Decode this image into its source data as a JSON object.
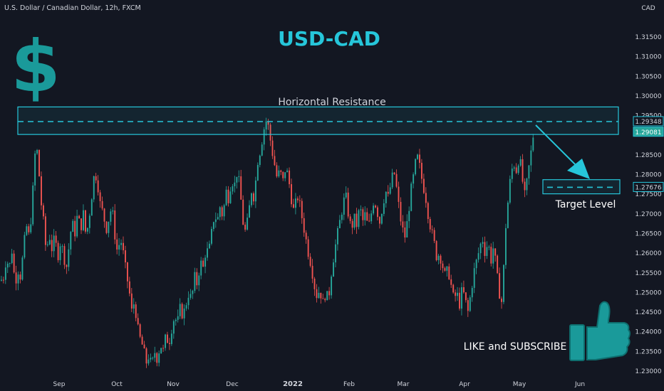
{
  "header": {
    "symbol_line": "U.S. Dollar / Canadian Dollar, 12h, FXCM",
    "currency": "CAD"
  },
  "chart_data": {
    "type": "candlestick",
    "title": "USD-CAD",
    "y_axis": {
      "unit": "CAD",
      "ticks": [
        1.315,
        1.31,
        1.305,
        1.3,
        1.295,
        1.285,
        1.28,
        1.275,
        1.27,
        1.265,
        1.26,
        1.255,
        1.25,
        1.245,
        1.24,
        1.235,
        1.23
      ],
      "tick_labels": [
        "1.31500",
        "1.31000",
        "1.30500",
        "1.30000",
        "1.29500",
        "1.28500",
        "1.28000",
        "1.27500",
        "1.27000",
        "1.26500",
        "1.26000",
        "1.25500",
        "1.25000",
        "1.24500",
        "1.24000",
        "1.23500",
        "1.23000"
      ],
      "range": [
        1.23,
        1.32
      ]
    },
    "x_axis": {
      "labels": [
        "Sep",
        "Oct",
        "Nov",
        "Dec",
        "2022",
        "Feb",
        "Mar",
        "Apr",
        "May",
        "Jun"
      ],
      "bold_labels": [
        "2022"
      ]
    },
    "price_markers": [
      {
        "label": "1.29348",
        "value": 1.29348,
        "style": "outlined"
      },
      {
        "label": "1.29081",
        "value": 1.29081,
        "style": "filled"
      },
      {
        "label": "1.27676",
        "value": 1.27676,
        "style": "outlined"
      }
    ],
    "close_path": [
      [
        0,
        1.253
      ],
      [
        4,
        1.254
      ],
      [
        8,
        1.259
      ],
      [
        12,
        1.256
      ],
      [
        16,
        1.261
      ],
      [
        20,
        1.252
      ],
      [
        24,
        1.256
      ],
      [
        28,
        1.254
      ],
      [
        32,
        1.261
      ],
      [
        36,
        1.267
      ],
      [
        40,
        1.264
      ],
      [
        44,
        1.272
      ],
      [
        48,
        1.285
      ],
      [
        52,
        1.286
      ],
      [
        56,
        1.274
      ],
      [
        60,
        1.268
      ],
      [
        64,
        1.26
      ],
      [
        68,
        1.265
      ],
      [
        72,
        1.261
      ],
      [
        76,
        1.264
      ],
      [
        80,
        1.259
      ],
      [
        84,
        1.263
      ],
      [
        88,
        1.26
      ],
      [
        92,
        1.256
      ],
      [
        96,
        1.262
      ],
      [
        100,
        1.268
      ],
      [
        104,
        1.265
      ],
      [
        108,
        1.27
      ],
      [
        112,
        1.266
      ],
      [
        116,
        1.27
      ],
      [
        120,
        1.264
      ],
      [
        124,
        1.269
      ],
      [
        128,
        1.275
      ],
      [
        132,
        1.281
      ],
      [
        136,
        1.278
      ],
      [
        140,
        1.272
      ],
      [
        144,
        1.27
      ],
      [
        148,
        1.266
      ],
      [
        152,
        1.269
      ],
      [
        156,
        1.272
      ],
      [
        160,
        1.265
      ],
      [
        164,
        1.26
      ],
      [
        168,
        1.264
      ],
      [
        172,
        1.26
      ],
      [
        176,
        1.255
      ],
      [
        180,
        1.251
      ],
      [
        184,
        1.245
      ],
      [
        188,
        1.248
      ],
      [
        192,
        1.241
      ],
      [
        196,
        1.238
      ],
      [
        200,
        1.236
      ],
      [
        204,
        1.232
      ],
      [
        208,
        1.234
      ],
      [
        212,
        1.231
      ],
      [
        216,
        1.235
      ],
      [
        220,
        1.233
      ],
      [
        224,
        1.237
      ],
      [
        228,
        1.235
      ],
      [
        232,
        1.239
      ],
      [
        236,
        1.237
      ],
      [
        240,
        1.241
      ],
      [
        244,
        1.244
      ],
      [
        248,
        1.242
      ],
      [
        252,
        1.246
      ],
      [
        256,
        1.244
      ],
      [
        260,
        1.247
      ],
      [
        264,
        1.25
      ],
      [
        268,
        1.248
      ],
      [
        272,
        1.254
      ],
      [
        276,
        1.252
      ],
      [
        280,
        1.258
      ],
      [
        284,
        1.256
      ],
      [
        288,
        1.261
      ],
      [
        292,
        1.26
      ],
      [
        296,
        1.265
      ],
      [
        300,
        1.27
      ],
      [
        304,
        1.268
      ],
      [
        308,
        1.272
      ],
      [
        312,
        1.269
      ],
      [
        316,
        1.276
      ],
      [
        320,
        1.274
      ],
      [
        324,
        1.279
      ],
      [
        328,
        1.277
      ],
      [
        332,
        1.281
      ],
      [
        336,
        1.276
      ],
      [
        340,
        1.268
      ],
      [
        344,
        1.265
      ],
      [
        348,
        1.27
      ],
      [
        352,
        1.276
      ],
      [
        356,
        1.274
      ],
      [
        360,
        1.283
      ],
      [
        364,
        1.286
      ],
      [
        368,
        1.29
      ],
      [
        372,
        1.294
      ],
      [
        376,
        1.292
      ],
      [
        380,
        1.287
      ],
      [
        384,
        1.283
      ],
      [
        388,
        1.279
      ],
      [
        392,
        1.281
      ],
      [
        396,
        1.278
      ],
      [
        400,
        1.282
      ],
      [
        404,
        1.279
      ],
      [
        408,
        1.274
      ],
      [
        412,
        1.27
      ],
      [
        416,
        1.275
      ],
      [
        420,
        1.272
      ],
      [
        424,
        1.268
      ],
      [
        428,
        1.264
      ],
      [
        432,
        1.26
      ],
      [
        436,
        1.257
      ],
      [
        440,
        1.252
      ],
      [
        444,
        1.249
      ],
      [
        448,
        1.251
      ],
      [
        452,
        1.247
      ],
      [
        456,
        1.25
      ],
      [
        460,
        1.248
      ],
      [
        464,
        1.255
      ],
      [
        468,
        1.26
      ],
      [
        472,
        1.264
      ],
      [
        476,
        1.268
      ],
      [
        480,
        1.272
      ],
      [
        484,
        1.275
      ],
      [
        488,
        1.27
      ],
      [
        492,
        1.266
      ],
      [
        496,
        1.269
      ],
      [
        500,
        1.267
      ],
      [
        504,
        1.272
      ],
      [
        508,
        1.268
      ],
      [
        512,
        1.27
      ],
      [
        516,
        1.266
      ],
      [
        520,
        1.27
      ],
      [
        524,
        1.274
      ],
      [
        528,
        1.271
      ],
      [
        532,
        1.268
      ],
      [
        536,
        1.272
      ],
      [
        540,
        1.276
      ],
      [
        544,
        1.274
      ],
      [
        548,
        1.278
      ],
      [
        552,
        1.281
      ],
      [
        556,
        1.276
      ],
      [
        560,
        1.27
      ],
      [
        564,
        1.266
      ],
      [
        568,
        1.264
      ],
      [
        572,
        1.27
      ],
      [
        576,
        1.276
      ],
      [
        580,
        1.28
      ],
      [
        584,
        1.285
      ],
      [
        588,
        1.282
      ],
      [
        592,
        1.278
      ],
      [
        596,
        1.275
      ],
      [
        600,
        1.27
      ],
      [
        604,
        1.266
      ],
      [
        608,
        1.263
      ],
      [
        612,
        1.259
      ],
      [
        616,
        1.26
      ],
      [
        620,
        1.257
      ],
      [
        624,
        1.254
      ],
      [
        628,
        1.256
      ],
      [
        632,
        1.252
      ],
      [
        636,
        1.248
      ],
      [
        640,
        1.25
      ],
      [
        644,
        1.247
      ],
      [
        648,
        1.251
      ],
      [
        652,
        1.248
      ],
      [
        656,
        1.245
      ],
      [
        660,
        1.25
      ],
      [
        664,
        1.255
      ],
      [
        668,
        1.258
      ],
      [
        672,
        1.261
      ],
      [
        676,
        1.264
      ],
      [
        680,
        1.26
      ],
      [
        684,
        1.263
      ],
      [
        688,
        1.258
      ],
      [
        692,
        1.262
      ],
      [
        696,
        1.255
      ],
      [
        700,
        1.25
      ],
      [
        704,
        1.247
      ],
      [
        708,
        1.265
      ],
      [
        712,
        1.273
      ],
      [
        716,
        1.28
      ],
      [
        720,
        1.283
      ],
      [
        724,
        1.281
      ],
      [
        728,
        1.285
      ],
      [
        732,
        1.279
      ],
      [
        736,
        1.274
      ],
      [
        740,
        1.28
      ],
      [
        744,
        1.285
      ],
      [
        748,
        1.2908
      ]
    ],
    "annotations": [
      {
        "type": "zone",
        "label": "Horizontal Resistance",
        "top": 1.2972,
        "bottom": 1.2902,
        "line": 1.29348,
        "x_start": 25,
        "x_end": 868
      },
      {
        "type": "zone",
        "label": "Target Level",
        "top": 1.2787,
        "bottom": 1.2751,
        "line": 1.27676,
        "x_start": 762,
        "x_end": 870
      },
      {
        "type": "arrow",
        "direction": "down-right"
      }
    ],
    "promo": {
      "text": "LIKE and SUBSCRIBE"
    },
    "colors": {
      "background": "#131722",
      "up": "#26a69a",
      "down": "#ef5350",
      "annotation": "#26c6da",
      "text": "#d1d4dc",
      "marker_fill": "#26a69a"
    }
  }
}
